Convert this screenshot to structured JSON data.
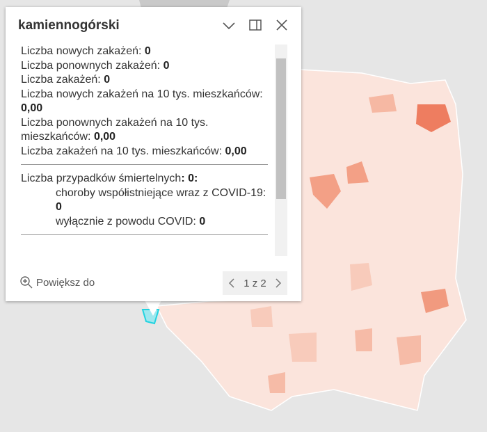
{
  "popup": {
    "title": "kamiennogórski",
    "fields": [
      {
        "label": "Liczba nowych zakażeń:",
        "value": "0"
      },
      {
        "label": "Liczba ponownych zakażeń:",
        "value": "0"
      },
      {
        "label": "Liczba zakażeń:",
        "value": "0"
      },
      {
        "label": "Liczba nowych zakażeń na 10 tys. mieszkańców:",
        "value": "0,00"
      },
      {
        "label": "Liczba ponownych zakażeń na 10 tys. mieszkańców:",
        "value": "0,00"
      },
      {
        "label": "Liczba zakażeń na 10 tys. mieszkańców:",
        "value": "0,00"
      }
    ],
    "deaths": {
      "label": "Liczba przypadków śmiertelnych",
      "value": ": 0:",
      "items": [
        {
          "label": "choroby współistniejące wraz z COVID-19:",
          "value": "0"
        },
        {
          "label": "wyłącznie z powodu COVID:",
          "value": "0"
        }
      ]
    },
    "zoom": "Powiększ do",
    "pager": "1 z 2"
  }
}
